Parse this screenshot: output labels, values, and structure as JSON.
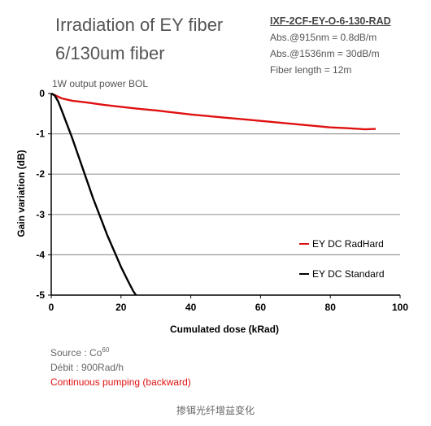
{
  "header": {
    "title_line1": "Irradiation of EY fiber",
    "title_line2": "6/130um fiber",
    "reference": "IXF-2CF-EY-O-6-130-RAD",
    "abs_915": "Abs.@915nm = 0.8dB/m",
    "abs_1536": "Abs.@1536nm = 30dB/m",
    "fiber_length": "Fiber length = 12m",
    "subtitle": "1W output power BOL"
  },
  "notes": {
    "source_label": "Source : Co",
    "source_sup": "60",
    "debit": "Débit : 900Rad/h",
    "pumping": "Continuous pumping (backward)"
  },
  "caption": "掺铒光纤增益变化",
  "chart_data": {
    "type": "line",
    "xlabel": "Cumulated dose (kRad)",
    "ylabel": "Gain variation (dB)",
    "xlim": [
      0,
      100
    ],
    "ylim": [
      -5,
      0
    ],
    "xticks": [
      "0",
      "20",
      "40",
      "60",
      "80",
      "100"
    ],
    "yticks": [
      "0",
      "-1",
      "-2",
      "-3",
      "-4",
      "-5"
    ],
    "grid": "horizontal",
    "legend_position": "lower-right",
    "series": [
      {
        "name": "EY DC RadHard",
        "color": "#e01010",
        "x": [
          0,
          3,
          6,
          10,
          15,
          20,
          25,
          30,
          35,
          40,
          45,
          50,
          55,
          60,
          65,
          70,
          75,
          80,
          85,
          90,
          93
        ],
        "y": [
          0,
          -0.12,
          -0.18,
          -0.22,
          -0.28,
          -0.33,
          -0.38,
          -0.42,
          -0.47,
          -0.52,
          -0.56,
          -0.6,
          -0.64,
          -0.68,
          -0.72,
          -0.76,
          -0.8,
          -0.84,
          -0.86,
          -0.89,
          -0.88
        ]
      },
      {
        "name": "EY DC Standard",
        "color": "#000000",
        "x": [
          0,
          1,
          2,
          3,
          4,
          6,
          8,
          10,
          12,
          14,
          16,
          18,
          20,
          22,
          23.5,
          24.3
        ],
        "y": [
          0,
          -0.05,
          -0.2,
          -0.42,
          -0.65,
          -1.1,
          -1.6,
          -2.1,
          -2.6,
          -3.05,
          -3.5,
          -3.9,
          -4.3,
          -4.65,
          -4.9,
          -5.0
        ]
      }
    ]
  }
}
